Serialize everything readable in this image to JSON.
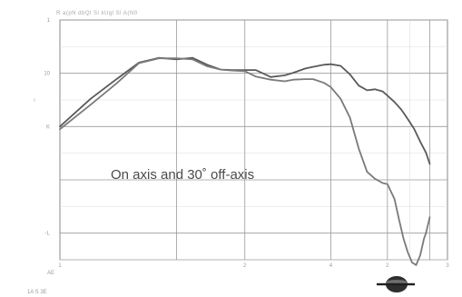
{
  "header": {
    "text": "R  a(pN     dbQl  Sl   kUgl Sl      A(N0"
  },
  "chart_data": {
    "type": "line",
    "title": "",
    "annotation": "On axis and 30˚ off-axis",
    "xlabel": "",
    "ylabel": "",
    "x_scale": "log",
    "xlim": [
      1,
      10
    ],
    "ylim": [
      -30,
      15
    ],
    "grid": true,
    "y_tick_labels": [
      {
        "v": 15,
        "t": "1"
      },
      {
        "v": 5,
        "t": "10"
      },
      {
        "v": -5,
        "t": "K"
      },
      {
        "v": -25,
        "t": "-L"
      }
    ],
    "y_side_mark": {
      "v": 0,
      "t": "ı"
    },
    "x_tick_labels": [
      {
        "v": 1,
        "t": "1"
      },
      {
        "v": 3,
        "t": "2"
      },
      {
        "v": 5,
        "t": "4"
      },
      {
        "v": 7,
        "t": "2"
      },
      {
        "v": 10,
        "t": "3"
      }
    ],
    "corner_label": "AE",
    "footer_label": "1A  S  3E",
    "series": [
      {
        "color": "#5a5a5a",
        "x": [
          1.0,
          1.2,
          1.4,
          1.6,
          1.8,
          2.0,
          2.2,
          2.4,
          2.6,
          2.8,
          3.0,
          3.2,
          3.5,
          3.8,
          4.0,
          4.3,
          4.5,
          4.8,
          5.0,
          5.3,
          5.6,
          5.9,
          6.2,
          6.5,
          6.8,
          7.0,
          7.3,
          7.6,
          7.9,
          8.2,
          8.5,
          8.8,
          9.0
        ],
        "y": [
          -5.0,
          0.2,
          3.9,
          7.0,
          7.9,
          7.6,
          7.9,
          6.6,
          5.7,
          5.6,
          5.6,
          5.6,
          4.3,
          4.6,
          5.1,
          5.9,
          6.2,
          6.6,
          6.7,
          6.4,
          4.8,
          2.7,
          1.8,
          2.0,
          1.6,
          0.8,
          -0.4,
          -1.8,
          -3.6,
          -5.4,
          -7.8,
          -9.9,
          -12.0
        ]
      },
      {
        "color": "#7a7a7a",
        "x": [
          1.0,
          1.2,
          1.4,
          1.6,
          1.8,
          2.0,
          2.2,
          2.4,
          2.6,
          2.8,
          3.0,
          3.2,
          3.5,
          3.8,
          4.0,
          4.3,
          4.5,
          4.8,
          5.0,
          5.3,
          5.6,
          5.9,
          6.2,
          6.5,
          6.8,
          7.0,
          7.3,
          7.5,
          7.7,
          7.9,
          8.1,
          8.3,
          8.5,
          8.7,
          8.8,
          9.0
        ],
        "y": [
          -5.5,
          -0.9,
          3.1,
          6.9,
          7.8,
          7.8,
          7.6,
          6.3,
          5.7,
          5.5,
          5.4,
          4.4,
          3.8,
          3.5,
          3.8,
          3.9,
          3.9,
          3.2,
          2.4,
          0.2,
          -3.3,
          -9.1,
          -13.5,
          -14.8,
          -15.6,
          -15.8,
          -18.6,
          -22.5,
          -26.0,
          -28.6,
          -30.5,
          -31.0,
          -29.2,
          -26.0,
          -25.0,
          -22.0
        ]
      }
    ]
  }
}
